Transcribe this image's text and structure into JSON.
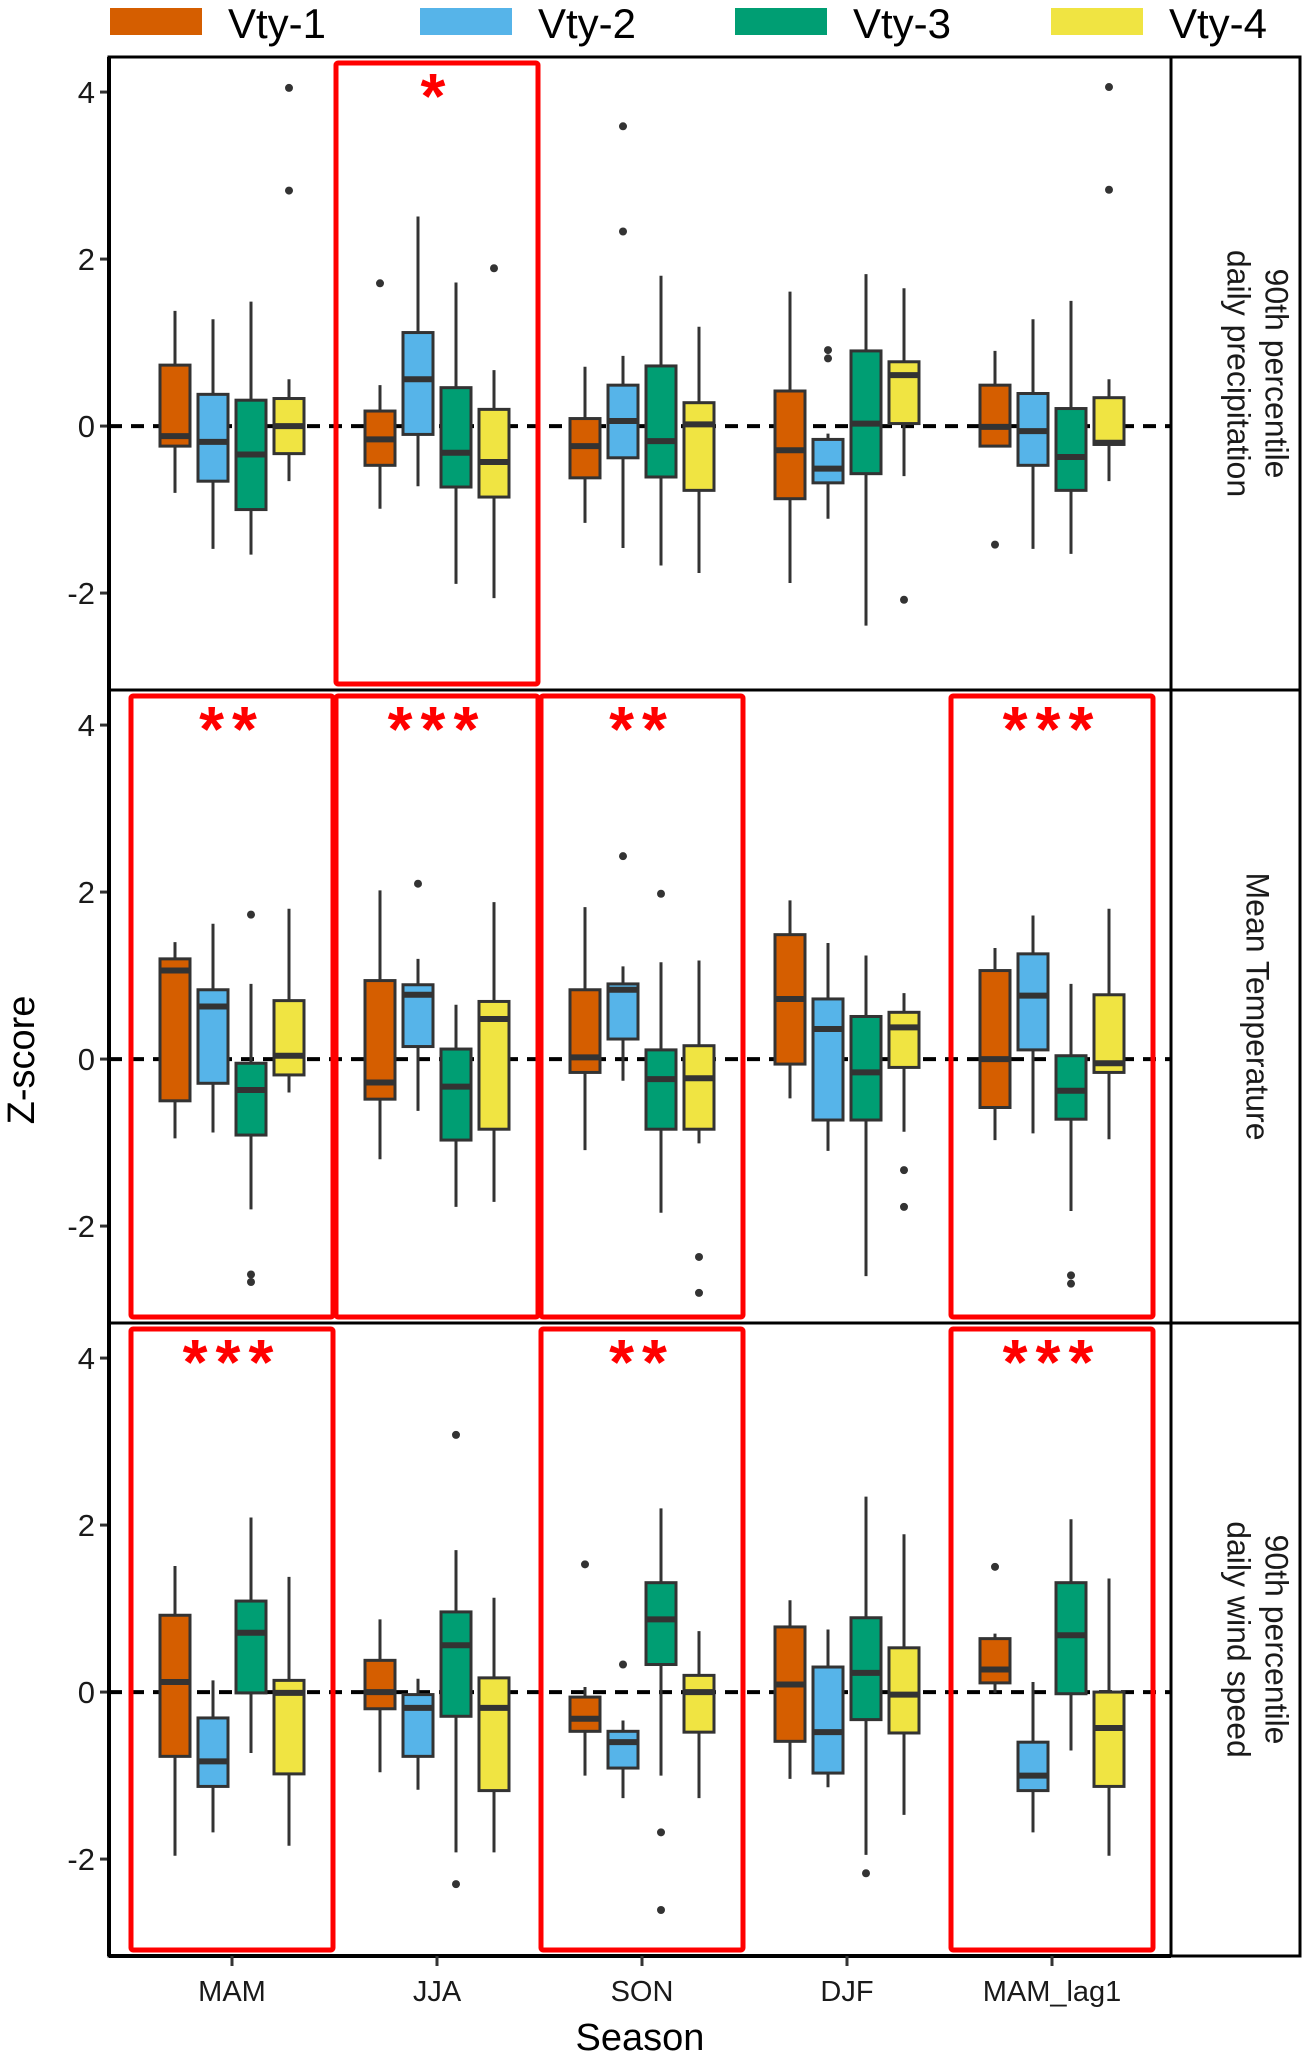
{
  "chart_data": {
    "type": "boxplot",
    "title": "",
    "xlabel": "Season",
    "ylabel": "Z-score",
    "categories": [
      "MAM",
      "JJA",
      "SON",
      "DJF",
      "MAM_lag1"
    ],
    "ylim": [
      -3.16,
      4.42
    ],
    "yticks": [
      -2,
      0,
      2,
      4
    ],
    "ytick_labels": [
      "-2",
      "0",
      "2",
      "4"
    ],
    "reference_line": {
      "y": 0,
      "style": "dashed"
    },
    "legend": {
      "placement": "top",
      "entries": [
        {
          "name": "Vty-1",
          "color": "#D55E00"
        },
        {
          "name": "Vty-2",
          "color": "#56B4E9"
        },
        {
          "name": "Vty-3",
          "color": "#009E73"
        },
        {
          "name": "Vty-4",
          "color": "#F0E442"
        }
      ]
    },
    "significance_color": "#FF0000",
    "panels": [
      {
        "strip_lines": [
          "90th percentile",
          "daily precipitation"
        ],
        "groups": [
          {
            "season": "MAM",
            "significance": "",
            "highlighted": false,
            "boxes": [
              {
                "series": "Vty-1",
                "lower": -0.8,
                "q1": -0.24,
                "median": -0.12,
                "q3": 0.73,
                "upper": 1.38,
                "outliers": []
              },
              {
                "series": "Vty-2",
                "lower": -1.47,
                "q1": -0.66,
                "median": -0.19,
                "q3": 0.38,
                "upper": 1.28,
                "outliers": []
              },
              {
                "series": "Vty-3",
                "lower": -1.54,
                "q1": -1.0,
                "median": -0.34,
                "q3": 0.31,
                "upper": 1.49,
                "outliers": []
              },
              {
                "series": "Vty-4",
                "lower": -0.66,
                "q1": -0.33,
                "median": 0.0,
                "q3": 0.33,
                "upper": 0.56,
                "outliers": [
                  4.05,
                  2.82
                ]
              }
            ]
          },
          {
            "season": "JJA",
            "significance": "*",
            "highlighted": true,
            "boxes": [
              {
                "series": "Vty-1",
                "lower": -0.99,
                "q1": -0.47,
                "median": -0.16,
                "q3": 0.18,
                "upper": 0.49,
                "outliers": [
                  1.71
                ]
              },
              {
                "series": "Vty-2",
                "lower": -0.72,
                "q1": -0.1,
                "median": 0.56,
                "q3": 1.12,
                "upper": 2.51,
                "outliers": []
              },
              {
                "series": "Vty-3",
                "lower": -1.89,
                "q1": -0.73,
                "median": -0.32,
                "q3": 0.46,
                "upper": 1.72,
                "outliers": []
              },
              {
                "series": "Vty-4",
                "lower": -2.06,
                "q1": -0.85,
                "median": -0.43,
                "q3": 0.2,
                "upper": 0.67,
                "outliers": [
                  1.89
                ]
              }
            ]
          },
          {
            "season": "SON",
            "significance": "",
            "highlighted": false,
            "boxes": [
              {
                "series": "Vty-1",
                "lower": -1.16,
                "q1": -0.62,
                "median": -0.24,
                "q3": 0.09,
                "upper": 0.71,
                "outliers": []
              },
              {
                "series": "Vty-2",
                "lower": -1.46,
                "q1": -0.38,
                "median": 0.06,
                "q3": 0.49,
                "upper": 0.84,
                "outliers": [
                  3.59,
                  2.33
                ]
              },
              {
                "series": "Vty-3",
                "lower": -1.67,
                "q1": -0.61,
                "median": -0.18,
                "q3": 0.72,
                "upper": 1.8,
                "outliers": []
              },
              {
                "series": "Vty-4",
                "lower": -1.76,
                "q1": -0.77,
                "median": 0.02,
                "q3": 0.28,
                "upper": 1.19,
                "outliers": []
              }
            ]
          },
          {
            "season": "DJF",
            "significance": "",
            "highlighted": false,
            "boxes": [
              {
                "series": "Vty-1",
                "lower": -1.88,
                "q1": -0.87,
                "median": -0.29,
                "q3": 0.42,
                "upper": 1.61,
                "outliers": []
              },
              {
                "series": "Vty-2",
                "lower": -1.11,
                "q1": -0.68,
                "median": -0.51,
                "q3": -0.16,
                "upper": -0.09,
                "outliers": [
                  0.91,
                  0.81
                ]
              },
              {
                "series": "Vty-3",
                "lower": -2.39,
                "q1": -0.57,
                "median": 0.03,
                "q3": 0.9,
                "upper": 1.82,
                "outliers": []
              },
              {
                "series": "Vty-4",
                "lower": -0.6,
                "q1": 0.03,
                "median": 0.61,
                "q3": 0.77,
                "upper": 1.65,
                "outliers": [
                  -2.08
                ]
              }
            ]
          },
          {
            "season": "MAM_lag1",
            "significance": "",
            "highlighted": false,
            "boxes": [
              {
                "series": "Vty-1",
                "lower": -0.24,
                "q1": -0.24,
                "median": -0.01,
                "q3": 0.49,
                "upper": 0.9,
                "outliers": [
                  -1.42
                ]
              },
              {
                "series": "Vty-2",
                "lower": -1.47,
                "q1": -0.47,
                "median": -0.06,
                "q3": 0.39,
                "upper": 1.28,
                "outliers": []
              },
              {
                "series": "Vty-3",
                "lower": -1.53,
                "q1": -0.77,
                "median": -0.37,
                "q3": 0.21,
                "upper": 1.5,
                "outliers": []
              },
              {
                "series": "Vty-4",
                "lower": -0.66,
                "q1": -0.22,
                "median": -0.2,
                "q3": 0.34,
                "upper": 0.56,
                "outliers": [
                  4.06,
                  2.83
                ]
              }
            ]
          }
        ]
      },
      {
        "strip_lines": [
          "Mean Temperature"
        ],
        "groups": [
          {
            "season": "MAM",
            "significance": "**",
            "highlighted": true,
            "boxes": [
              {
                "series": "Vty-1",
                "lower": -0.95,
                "q1": -0.5,
                "median": 1.06,
                "q3": 1.2,
                "upper": 1.4,
                "outliers": []
              },
              {
                "series": "Vty-2",
                "lower": -0.88,
                "q1": -0.29,
                "median": 0.63,
                "q3": 0.83,
                "upper": 1.62,
                "outliers": []
              },
              {
                "series": "Vty-3",
                "lower": -1.8,
                "q1": -0.91,
                "median": -0.37,
                "q3": -0.05,
                "upper": 0.9,
                "outliers": [
                  1.73,
                  -2.58,
                  -2.67
                ]
              },
              {
                "series": "Vty-4",
                "lower": -0.4,
                "q1": -0.19,
                "median": 0.04,
                "q3": 0.7,
                "upper": 1.8,
                "outliers": []
              }
            ]
          },
          {
            "season": "JJA",
            "significance": "***",
            "highlighted": true,
            "boxes": [
              {
                "series": "Vty-1",
                "lower": -1.2,
                "q1": -0.48,
                "median": -0.28,
                "q3": 0.94,
                "upper": 2.02,
                "outliers": []
              },
              {
                "series": "Vty-2",
                "lower": -0.62,
                "q1": 0.15,
                "median": 0.77,
                "q3": 0.89,
                "upper": 1.2,
                "outliers": [
                  2.1
                ]
              },
              {
                "series": "Vty-3",
                "lower": -1.77,
                "q1": -0.97,
                "median": -0.33,
                "q3": 0.12,
                "upper": 0.65,
                "outliers": []
              },
              {
                "series": "Vty-4",
                "lower": -1.71,
                "q1": -0.84,
                "median": 0.48,
                "q3": 0.69,
                "upper": 1.88,
                "outliers": []
              }
            ]
          },
          {
            "season": "SON",
            "significance": "**",
            "highlighted": true,
            "boxes": [
              {
                "series": "Vty-1",
                "lower": -1.09,
                "q1": -0.16,
                "median": 0.02,
                "q3": 0.83,
                "upper": 1.82,
                "outliers": []
              },
              {
                "series": "Vty-2",
                "lower": -0.26,
                "q1": 0.24,
                "median": 0.83,
                "q3": 0.9,
                "upper": 1.11,
                "outliers": [
                  2.43
                ]
              },
              {
                "series": "Vty-3",
                "lower": -1.84,
                "q1": -0.84,
                "median": -0.24,
                "q3": 0.11,
                "upper": 1.16,
                "outliers": [
                  1.98
                ]
              },
              {
                "series": "Vty-4",
                "lower": -1.01,
                "q1": -0.84,
                "median": -0.23,
                "q3": 0.16,
                "upper": 1.18,
                "outliers": [
                  -2.37,
                  -2.8
                ]
              }
            ]
          },
          {
            "season": "DJF",
            "significance": "",
            "highlighted": false,
            "boxes": [
              {
                "series": "Vty-1",
                "lower": -0.47,
                "q1": -0.06,
                "median": 0.72,
                "q3": 1.49,
                "upper": 1.9,
                "outliers": []
              },
              {
                "series": "Vty-2",
                "lower": -1.1,
                "q1": -0.73,
                "median": 0.36,
                "q3": 0.72,
                "upper": 1.39,
                "outliers": []
              },
              {
                "series": "Vty-3",
                "lower": -2.6,
                "q1": -0.73,
                "median": -0.16,
                "q3": 0.51,
                "upper": 1.24,
                "outliers": []
              },
              {
                "series": "Vty-4",
                "lower": -0.87,
                "q1": -0.1,
                "median": 0.38,
                "q3": 0.56,
                "upper": 0.79,
                "outliers": [
                  -1.33,
                  -1.77
                ]
              }
            ]
          },
          {
            "season": "MAM_lag1",
            "significance": "***",
            "highlighted": true,
            "boxes": [
              {
                "series": "Vty-1",
                "lower": -0.97,
                "q1": -0.58,
                "median": 0.0,
                "q3": 1.06,
                "upper": 1.33,
                "outliers": []
              },
              {
                "series": "Vty-2",
                "lower": -0.89,
                "q1": 0.11,
                "median": 0.76,
                "q3": 1.26,
                "upper": 1.72,
                "outliers": []
              },
              {
                "series": "Vty-3",
                "lower": -1.82,
                "q1": -0.72,
                "median": -0.38,
                "q3": 0.04,
                "upper": 0.9,
                "outliers": [
                  -2.59,
                  -2.69
                ]
              },
              {
                "series": "Vty-4",
                "lower": -0.96,
                "q1": -0.16,
                "median": -0.05,
                "q3": 0.77,
                "upper": 1.8,
                "outliers": []
              }
            ]
          }
        ]
      },
      {
        "strip_lines": [
          "90th percentile",
          "daily wind speed"
        ],
        "groups": [
          {
            "season": "MAM",
            "significance": "***",
            "highlighted": true,
            "boxes": [
              {
                "series": "Vty-1",
                "lower": -1.96,
                "q1": -0.77,
                "median": 0.12,
                "q3": 0.92,
                "upper": 1.51,
                "outliers": []
              },
              {
                "series": "Vty-2",
                "lower": -1.68,
                "q1": -1.13,
                "median": -0.83,
                "q3": -0.31,
                "upper": 0.14,
                "outliers": []
              },
              {
                "series": "Vty-3",
                "lower": -0.73,
                "q1": -0.01,
                "median": 0.71,
                "q3": 1.09,
                "upper": 2.09,
                "outliers": []
              },
              {
                "series": "Vty-4",
                "lower": -1.84,
                "q1": -0.98,
                "median": -0.01,
                "q3": 0.14,
                "upper": 1.38,
                "outliers": []
              }
            ]
          },
          {
            "season": "JJA",
            "significance": "",
            "highlighted": false,
            "boxes": [
              {
                "series": "Vty-1",
                "lower": -0.96,
                "q1": -0.2,
                "median": 0.0,
                "q3": 0.38,
                "upper": 0.87,
                "outliers": []
              },
              {
                "series": "Vty-2",
                "lower": -1.17,
                "q1": -0.77,
                "median": -0.19,
                "q3": -0.03,
                "upper": 0.16,
                "outliers": []
              },
              {
                "series": "Vty-3",
                "lower": -1.92,
                "q1": -0.29,
                "median": 0.56,
                "q3": 0.96,
                "upper": 1.7,
                "outliers": [
                  3.08,
                  -2.3
                ]
              },
              {
                "series": "Vty-4",
                "lower": -1.92,
                "q1": -1.18,
                "median": -0.19,
                "q3": 0.17,
                "upper": 1.13,
                "outliers": []
              }
            ]
          },
          {
            "season": "SON",
            "significance": "**",
            "highlighted": true,
            "boxes": [
              {
                "series": "Vty-1",
                "lower": -1.0,
                "q1": -0.47,
                "median": -0.32,
                "q3": -0.06,
                "upper": 0.06,
                "outliers": [
                  1.53
                ]
              },
              {
                "series": "Vty-2",
                "lower": -1.27,
                "q1": -0.91,
                "median": -0.6,
                "q3": -0.47,
                "upper": -0.34,
                "outliers": [
                  0.33
                ]
              },
              {
                "series": "Vty-3",
                "lower": -1.0,
                "q1": 0.33,
                "median": 0.87,
                "q3": 1.31,
                "upper": 2.2,
                "outliers": [
                  -1.68,
                  -2.61
                ]
              },
              {
                "series": "Vty-4",
                "lower": -1.27,
                "q1": -0.48,
                "median": 0.0,
                "q3": 0.2,
                "upper": 0.73,
                "outliers": []
              }
            ]
          },
          {
            "season": "DJF",
            "significance": "",
            "highlighted": false,
            "boxes": [
              {
                "series": "Vty-1",
                "lower": -1.04,
                "q1": -0.59,
                "median": 0.09,
                "q3": 0.78,
                "upper": 1.1,
                "outliers": []
              },
              {
                "series": "Vty-2",
                "lower": -1.14,
                "q1": -0.97,
                "median": -0.48,
                "q3": 0.3,
                "upper": 0.75,
                "outliers": []
              },
              {
                "series": "Vty-3",
                "lower": -1.95,
                "q1": -0.33,
                "median": 0.23,
                "q3": 0.89,
                "upper": 2.34,
                "outliers": [
                  -2.17
                ]
              },
              {
                "series": "Vty-4",
                "lower": -1.47,
                "q1": -0.49,
                "median": -0.03,
                "q3": 0.53,
                "upper": 1.89,
                "outliers": []
              }
            ]
          },
          {
            "season": "MAM_lag1",
            "significance": "***",
            "highlighted": true,
            "boxes": [
              {
                "series": "Vty-1",
                "lower": -0.01,
                "q1": 0.11,
                "median": 0.27,
                "q3": 0.64,
                "upper": 0.7,
                "outliers": [
                  1.5
                ]
              },
              {
                "series": "Vty-2",
                "lower": -1.68,
                "q1": -1.18,
                "median": -1.0,
                "q3": -0.6,
                "upper": 0.12,
                "outliers": []
              },
              {
                "series": "Vty-3",
                "lower": -0.7,
                "q1": -0.02,
                "median": 0.68,
                "q3": 1.31,
                "upper": 2.07,
                "outliers": []
              },
              {
                "series": "Vty-4",
                "lower": -1.96,
                "q1": -1.13,
                "median": -0.43,
                "q3": 0.0,
                "upper": 1.36,
                "outliers": []
              }
            ]
          }
        ]
      }
    ]
  }
}
